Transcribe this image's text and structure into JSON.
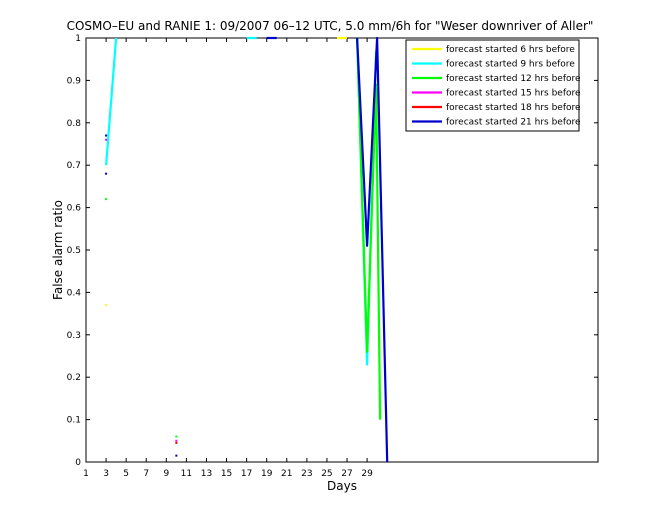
{
  "chart_data": {
    "type": "line",
    "title": "COSMO–EU and RANIE 1: 09/2007 06–12 UTC, 5.0 mm/6h for \"Weser downriver of Aller\"",
    "xlabel": "Days",
    "ylabel": "False alarm ratio",
    "xlim": [
      1,
      52
    ],
    "ylim": [
      0,
      1
    ],
    "xticks": [
      1,
      3,
      5,
      7,
      9,
      11,
      13,
      15,
      17,
      19,
      21,
      23,
      25,
      27,
      29
    ],
    "yticks": [
      0,
      0.1,
      0.2,
      0.3,
      0.4,
      0.5,
      0.6,
      0.7,
      0.8,
      0.9,
      1
    ],
    "ytick_labels": [
      "0",
      "0.1",
      "0.2",
      "0.3",
      "0.4",
      "0.5",
      "0.6",
      "0.7",
      "0.8",
      "0.9",
      "1"
    ],
    "legend_position": "top-right",
    "series": [
      {
        "name": "forecast started 6 hrs before",
        "color": "#ffff00",
        "lines": [
          [
            [
              26,
              1
            ],
            [
              27,
              1
            ]
          ]
        ],
        "points": [
          [
            3,
            0.37
          ]
        ]
      },
      {
        "name": "forecast started 9 hrs before",
        "color": "#00ffff",
        "lines": [
          [
            [
              3,
              0.7
            ],
            [
              4,
              1
            ]
          ],
          [
            [
              17,
              1
            ],
            [
              18,
              1
            ]
          ],
          [
            [
              28,
              1
            ],
            [
              29,
              0.23
            ],
            [
              29.9,
              0.97
            ]
          ]
        ],
        "points": []
      },
      {
        "name": "forecast started 12 hrs before",
        "color": "#00ff00",
        "lines": [
          [
            [
              28,
              1
            ],
            [
              29,
              0.26
            ],
            [
              29.9,
              0.89
            ],
            [
              30.3,
              0.1
            ]
          ]
        ],
        "points": [
          [
            3,
            0.62
          ],
          [
            10,
            0.06
          ]
        ]
      },
      {
        "name": "forecast started 15 hrs before",
        "color": "#ff00ff",
        "lines": [],
        "points": [
          [
            3,
            0.76
          ],
          [
            10,
            0.05
          ]
        ]
      },
      {
        "name": "forecast started 18 hrs before",
        "color": "#ff0000",
        "lines": [],
        "points": [
          [
            10,
            0.045
          ]
        ]
      },
      {
        "name": "forecast started 21 hrs before",
        "color": "#0000cc",
        "lines": [
          [
            [
              19,
              1
            ],
            [
              20,
              1
            ]
          ],
          [
            [
              28,
              1
            ],
            [
              29,
              0.51
            ],
            [
              30,
              1
            ],
            [
              31,
              0
            ]
          ]
        ],
        "points": [
          [
            3,
            0.77
          ],
          [
            3,
            0.68
          ],
          [
            10,
            0.015
          ]
        ]
      }
    ]
  }
}
